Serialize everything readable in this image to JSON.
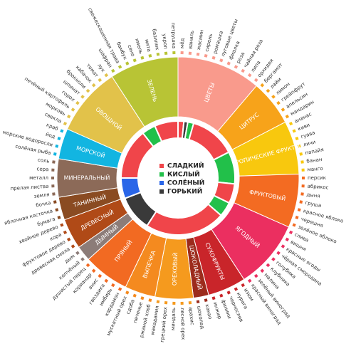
{
  "chart_data": {
    "type": "sunburst",
    "legend": [
      {
        "label": "СЛАДКИЙ",
        "color": "#f0454a"
      },
      {
        "label": "КИСЛЫЙ",
        "color": "#22c04a"
      },
      {
        "label": "СОЛЁНЫЙ",
        "color": "#2a66e8"
      },
      {
        "label": "ГОРЬКИЙ",
        "color": "#3a3a3a"
      }
    ],
    "inner_ring": [
      {
        "taste": "СЛАДКИЙ",
        "color": "#f0454a",
        "start": 0,
        "end": 6
      },
      {
        "taste": "ГОРЬКИЙ",
        "color": "#3a3a3a",
        "start": 6,
        "end": 10
      },
      {
        "taste": "КИСЛЫЙ",
        "color": "#22c04a",
        "start": 10,
        "end": 16
      },
      {
        "taste": "СЛАДКИЙ",
        "color": "#f0454a",
        "start": 16,
        "end": 63
      },
      {
        "taste": "КИСЛЫЙ",
        "color": "#22c04a",
        "start": 63,
        "end": 96
      },
      {
        "taste": "СЛАДКИЙ",
        "color": "#f0454a",
        "start": 96,
        "end": 116
      },
      {
        "taste": "КИСЛЫЙ",
        "color": "#22c04a",
        "start": 116,
        "end": 131
      },
      {
        "taste": "СЛАДКИЙ",
        "color": "#f0454a",
        "start": 131,
        "end": 213
      },
      {
        "taste": "ГОРЬКИЙ",
        "color": "#3a3a3a",
        "start": 213,
        "end": 249
      },
      {
        "taste": "СОЛЁНЫЙ",
        "color": "#2a66e8",
        "start": 249,
        "end": 270
      },
      {
        "taste": "СЛАДКИЙ",
        "color": "#f0454a",
        "start": 270,
        "end": 322
      },
      {
        "taste": "КИСЛЫЙ",
        "color": "#22c04a",
        "start": 322,
        "end": 336
      },
      {
        "taste": "СЛАДКИЙ",
        "color": "#f0454a",
        "start": 336,
        "end": 360
      }
    ],
    "categories": [
      {
        "name": "ЦВЕТЫ",
        "color": "#f99a8c",
        "items": [
          "мёд",
          "ваниль",
          "жасмин",
          "сирень",
          "ромашка",
          "луговые цветы",
          "фиалка",
          "роза",
          "чайная роза",
          "липа",
          "орхидея"
        ]
      },
      {
        "name": "ЦИТРУС",
        "color": "#f7a31a",
        "items": [
          "бергамот",
          "лайм",
          "лимон",
          "грейпфрут",
          "апельсин",
          "мандарин"
        ]
      },
      {
        "name": "ТРОПИЧЕСКИЕ ФРУКТЫ",
        "color": "#f8c80e",
        "items": [
          "ананас",
          "киви",
          "гуава",
          "личи",
          "папайя",
          "банан",
          "манго"
        ]
      },
      {
        "name": "ФРУКТОВЫЙ",
        "color": "#f36b22",
        "items": [
          "персик",
          "абрикос",
          "дыня",
          "груша",
          "красное яблоко",
          "черешня",
          "зелёное яблоко"
        ]
      },
      {
        "name": "ЯГОДНЫЙ",
        "color": "#eb2f60",
        "items": [
          "слива",
          "вишня",
          "красные ягоды",
          "чёрная смородина",
          "голубика",
          "клубника",
          "малина",
          "зелёный виноград",
          "красный виноград"
        ]
      },
      {
        "name": "СУХОФРУКТЫ",
        "color": "#c9252a",
        "items": [
          "изюм",
          "курага",
          "чернослив",
          "финики",
          "инжир"
        ]
      },
      {
        "name": "ШОКОЛАДНЫЙ",
        "color": "#9c2b1c",
        "items": [
          "какао",
          "шоколад"
        ]
      },
      {
        "name": "ОРЕХОВЫЙ",
        "color": "#f59a1e",
        "items": [
          "арахис",
          "лесной орех",
          "миндаль",
          "грецкий орех",
          "макадамия"
        ]
      },
      {
        "name": "ВЫПЕЧКА",
        "color": "#f48a1f",
        "items": [
          "ржаной хлеб",
          "печенье",
          "сдоба",
          "мускатный орех"
        ]
      },
      {
        "name": "ПРЯНЫЙ",
        "color": "#f26a22",
        "items": [
          "кардамон",
          "имбирь",
          "гвоздика",
          "анис",
          "кориандр",
          "душистый перец"
        ]
      },
      {
        "name": "ДЫМНЫЙ",
        "color": "#8c7c78",
        "items": [
          "копчёный",
          "дым"
        ]
      },
      {
        "name": "ДРЕВЕСНЫЙ",
        "color": "#b04a17",
        "items": [
          "древесная смола",
          "фруктовое дерево",
          "кора",
          "хвойное дерево"
        ]
      },
      {
        "name": "ТАНИННЫЙ",
        "color": "#8a4b22",
        "items": [
          "бумага",
          "яблочная косточка",
          "бочка"
        ]
      },
      {
        "name": "МИНЕРАЛЬНЫЙ",
        "color": "#8c6a58",
        "items": [
          "земля",
          "прелая листва",
          "металл",
          "сера",
          "соль"
        ]
      },
      {
        "name": "МОРСКОЙ",
        "color": "#12b5e1",
        "items": [
          "солёная рыба",
          "морские водоросли",
          "йод",
          "краб"
        ]
      },
      {
        "name": "ОВОЩНОЙ",
        "color": "#e2c24a",
        "items": [
          "свекла",
          "морковь",
          "печёный картофель",
          "горох",
          "шпинат",
          "брокколи",
          "кабачок",
          "томат",
          "лук"
        ]
      },
      {
        "name": "ЗЕЛЕНЬ",
        "color": "#b8c435",
        "items": [
          "шафран",
          "свежескошенная трава",
          "бамбук",
          "сено",
          "хмель",
          "мята",
          "базилик",
          "укроп",
          "петрушка"
        ]
      }
    ]
  }
}
